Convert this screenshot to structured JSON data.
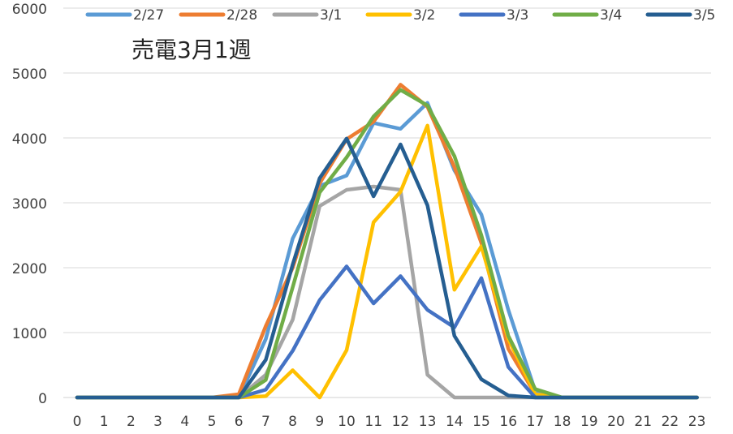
{
  "chart_data": {
    "type": "line",
    "title": "売電3月1週",
    "xlabel": "",
    "ylabel": "",
    "x": [
      0,
      1,
      2,
      3,
      4,
      5,
      6,
      7,
      8,
      9,
      10,
      11,
      12,
      13,
      14,
      15,
      16,
      17,
      18,
      19,
      20,
      21,
      22,
      23
    ],
    "ylim": [
      0,
      6000
    ],
    "yticks": [
      0,
      1000,
      2000,
      3000,
      4000,
      5000,
      6000
    ],
    "grid": true,
    "legend_position": "top",
    "series": [
      {
        "name": "2/27",
        "color": "#5B9BD5",
        "values": [
          0,
          0,
          0,
          0,
          0,
          0,
          0,
          900,
          2450,
          3260,
          3420,
          4230,
          4140,
          4540,
          3500,
          2820,
          1350,
          100,
          0,
          0,
          0,
          0,
          0,
          0
        ]
      },
      {
        "name": "2/28",
        "color": "#ED7D31",
        "values": [
          0,
          0,
          0,
          0,
          0,
          0,
          50,
          1100,
          2000,
          3300,
          3980,
          4250,
          4820,
          4480,
          3550,
          2380,
          750,
          50,
          0,
          0,
          0,
          0,
          0,
          0
        ]
      },
      {
        "name": "3/1",
        "color": "#A5A5A5",
        "values": [
          0,
          0,
          0,
          0,
          0,
          0,
          0,
          350,
          1200,
          2950,
          3200,
          3250,
          3200,
          350,
          0,
          0,
          0,
          0,
          0,
          0,
          0,
          0,
          0,
          0
        ]
      },
      {
        "name": "3/2",
        "color": "#FFC000",
        "values": [
          0,
          0,
          0,
          0,
          0,
          0,
          0,
          20,
          420,
          0,
          730,
          2700,
          3170,
          4190,
          1660,
          2330,
          900,
          50,
          0,
          0,
          0,
          0,
          0,
          0
        ]
      },
      {
        "name": "3/3",
        "color": "#4472C4",
        "values": [
          0,
          0,
          0,
          0,
          0,
          0,
          0,
          120,
          720,
          1500,
          2020,
          1450,
          1870,
          1350,
          1080,
          1840,
          470,
          0,
          0,
          0,
          0,
          0,
          0,
          0
        ]
      },
      {
        "name": "3/4",
        "color": "#70AD47",
        "values": [
          0,
          0,
          0,
          0,
          0,
          0,
          0,
          270,
          1700,
          3160,
          3700,
          4330,
          4740,
          4500,
          3720,
          2500,
          950,
          130,
          0,
          0,
          0,
          0,
          0,
          0
        ]
      },
      {
        "name": "3/5",
        "color": "#255E91",
        "values": [
          0,
          0,
          0,
          0,
          0,
          0,
          0,
          580,
          2050,
          3380,
          3990,
          3100,
          3900,
          2960,
          950,
          280,
          30,
          0,
          0,
          0,
          0,
          0,
          0,
          0
        ]
      }
    ]
  }
}
